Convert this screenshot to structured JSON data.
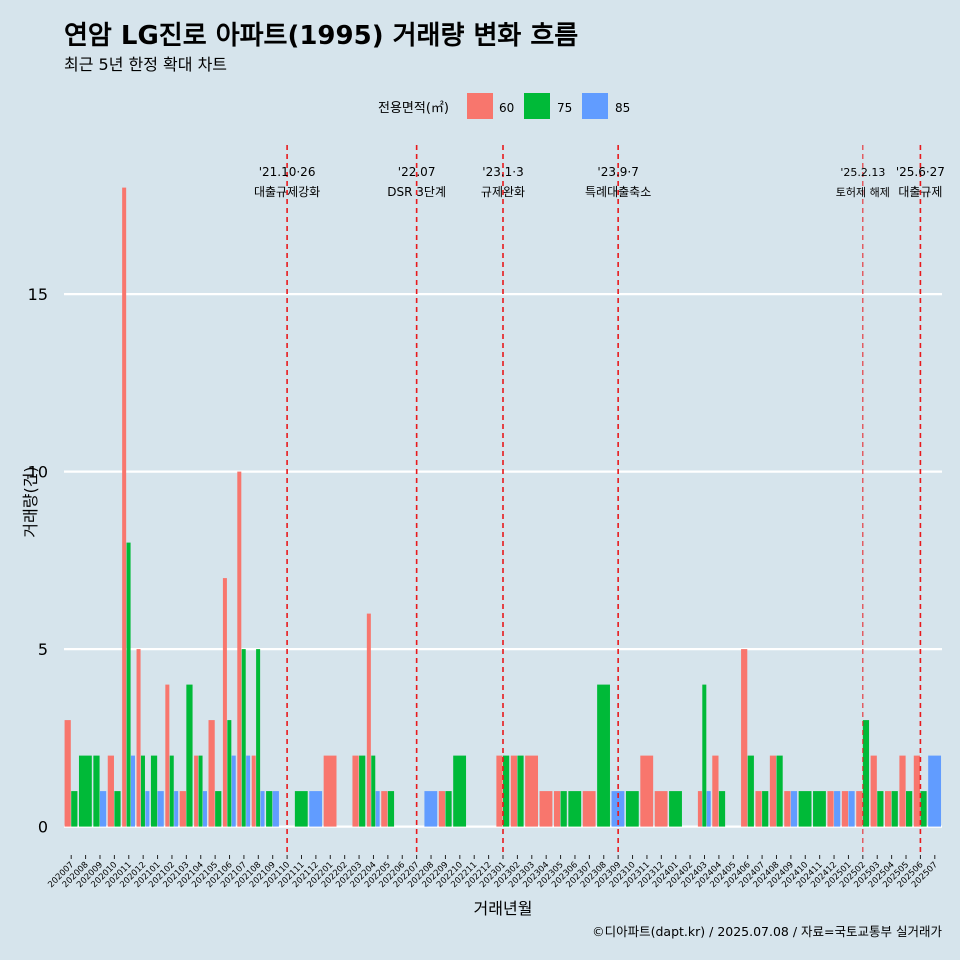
{
  "title": "연암 LG진로 아파트(1995) 거래량 변화 흐름",
  "subtitle": "최근 5년 한정 확대 차트",
  "caption": "©디아파트(dapt.kr) / 2025.07.08 / 자료=국토교통부 실거래가",
  "colors": {
    "60": "#f8766d",
    "75": "#00ba38",
    "85": "#619cff",
    "background": "#d6e4ec",
    "grid": "#ffffff",
    "vline": "#e8191c"
  },
  "chart_data": {
    "type": "bar",
    "xlabel": "거래년월",
    "ylabel": "거래량(건)",
    "ylim": [
      -0.8,
      19.2
    ],
    "yticks": [
      0,
      5,
      10,
      15
    ],
    "legend": {
      "title": "전용면적(㎡)",
      "position": "top"
    },
    "categories": [
      "202007",
      "202008",
      "202009",
      "202010",
      "202011",
      "202012",
      "202101",
      "202102",
      "202103",
      "202104",
      "202105",
      "202106",
      "202107",
      "202108",
      "202109",
      "202110",
      "202111",
      "202112",
      "202201",
      "202202",
      "202203",
      "202204",
      "202205",
      "202206",
      "202207",
      "202208",
      "202209",
      "202210",
      "202211",
      "202212",
      "202301",
      "202302",
      "202303",
      "202304",
      "202305",
      "202306",
      "202307",
      "202308",
      "202309",
      "202310",
      "202311",
      "202312",
      "202401",
      "202402",
      "202403",
      "202404",
      "202405",
      "202406",
      "202407",
      "202408",
      "202409",
      "202410",
      "202411",
      "202412",
      "202501",
      "202502",
      "202503",
      "202504",
      "202505",
      "202506",
      "202507"
    ],
    "series": [
      {
        "name": "60",
        "values": [
          3,
          0,
          0,
          2,
          18,
          5,
          0,
          4,
          1,
          2,
          3,
          7,
          10,
          2,
          0,
          0,
          0,
          0,
          2,
          0,
          2,
          6,
          1,
          0,
          0,
          0,
          1,
          0,
          0,
          0,
          2,
          2,
          2,
          1,
          1,
          0,
          1,
          0,
          0,
          0,
          2,
          1,
          0,
          0,
          1,
          2,
          0,
          5,
          1,
          2,
          1,
          0,
          0,
          1,
          1,
          1,
          2,
          1,
          2,
          2,
          0
        ]
      },
      {
        "name": "75",
        "values": [
          1,
          2,
          2,
          1,
          8,
          2,
          2,
          2,
          4,
          2,
          1,
          3,
          5,
          5,
          1,
          0,
          1,
          0,
          0,
          0,
          2,
          2,
          1,
          0,
          0,
          0,
          1,
          2,
          0,
          0,
          2,
          2,
          0,
          0,
          1,
          1,
          0,
          4,
          0,
          1,
          0,
          0,
          1,
          0,
          4,
          1,
          0,
          2,
          1,
          2,
          0,
          1,
          1,
          0,
          0,
          3,
          1,
          1,
          1,
          1,
          0
        ]
      },
      {
        "name": "85",
        "values": [
          0,
          0,
          1,
          0,
          2,
          1,
          1,
          1,
          0,
          1,
          0,
          2,
          2,
          1,
          1,
          0,
          0,
          1,
          0,
          0,
          0,
          1,
          0,
          0,
          0,
          1,
          0,
          0,
          0,
          0,
          0,
          0,
          0,
          0,
          0,
          0,
          0,
          0,
          1,
          0,
          0,
          0,
          0,
          0,
          1,
          0,
          0,
          0,
          0,
          0,
          1,
          0,
          0,
          1,
          1,
          0,
          0,
          0,
          0,
          0,
          2
        ]
      }
    ],
    "annotations": [
      {
        "index": 15,
        "date": "'21.10·26",
        "label": "대출규제강화"
      },
      {
        "index": 24,
        "date": "'22.07",
        "label": "DSR 3단계"
      },
      {
        "index": 30,
        "date": "'23.1·3",
        "label": "규제완화"
      },
      {
        "index": 38,
        "date": "'23.9·7",
        "label": "특례대출축소"
      },
      {
        "index": 55,
        "date": "'25.2.13",
        "label": "토허제 해제"
      },
      {
        "index": 59,
        "date": "'25.6·27",
        "label": "대출규제"
      }
    ]
  }
}
